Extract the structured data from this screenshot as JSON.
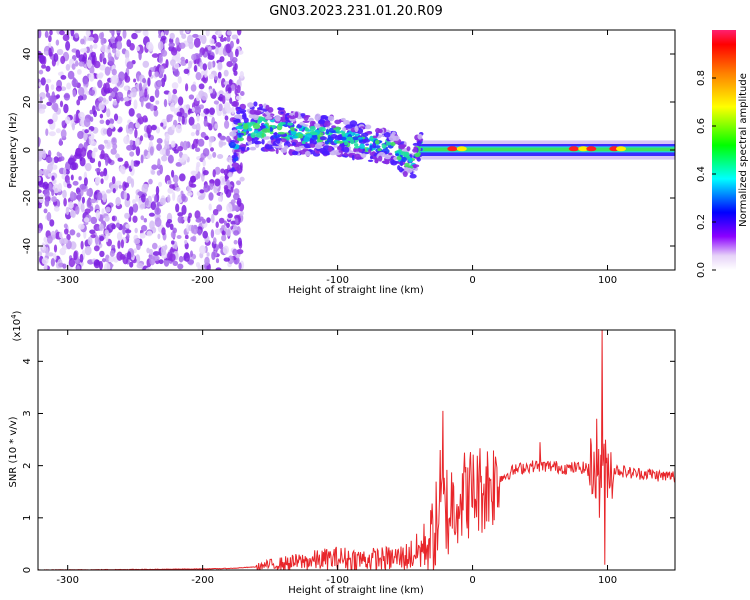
{
  "title": "GN03.2023.231.01.20.R09",
  "chart_data": [
    {
      "type": "heatmap",
      "xlabel": "Height of straight line (km)",
      "ylabel": "Frequency (Hz)",
      "xlim": [
        -322,
        150
      ],
      "ylim": [
        -50,
        50
      ],
      "xticks": [
        -300,
        -200,
        -100,
        0,
        100
      ],
      "yticks": [
        40,
        20,
        0,
        -20,
        -40
      ],
      "grid": false,
      "noise_region": [
        -322,
        -175
      ],
      "signal_track": [
        {
          "x": -175,
          "f": 8
        },
        {
          "x": -160,
          "f": 10
        },
        {
          "x": -140,
          "f": 8
        },
        {
          "x": -120,
          "f": 6
        },
        {
          "x": -100,
          "f": 6
        },
        {
          "x": -80,
          "f": 3
        },
        {
          "x": -60,
          "f": 1
        },
        {
          "x": -45,
          "f": -6
        },
        {
          "x": -38,
          "f": 3
        },
        {
          "x": -20,
          "f": 1
        },
        {
          "x": 0,
          "f": 0
        },
        {
          "x": 50,
          "f": 0
        },
        {
          "x": 85,
          "f": 1
        },
        {
          "x": 100,
          "f": -1
        },
        {
          "x": 150,
          "f": 0
        }
      ],
      "colorbar": {
        "label": "Normalized spectral amplitude",
        "ticks": [
          "0.0",
          "0.2",
          "0.4",
          "0.6",
          "0.8"
        ],
        "range": [
          0,
          1
        ]
      }
    },
    {
      "type": "line",
      "xlabel": "Height of straight line (km)",
      "ylabel": "SNR (10 * v/v)",
      "multiplier": "(x10",
      "multiplier_exp": "4",
      "multiplier_close": ")",
      "xlim": [
        -322,
        150
      ],
      "ylim": [
        0,
        4.6
      ],
      "xticks": [
        -300,
        -200,
        -100,
        0,
        100
      ],
      "yticks": [
        0,
        1,
        2,
        3,
        4
      ],
      "grid": false,
      "series": [
        {
          "color": "#e8262a",
          "points": [
            [
              -322,
              0.0
            ],
            [
              -250,
              0.01
            ],
            [
              -200,
              0.02
            ],
            [
              -180,
              0.03
            ],
            [
              -160,
              0.06
            ],
            [
              -150,
              0.1
            ],
            [
              -130,
              0.15
            ],
            [
              -110,
              0.2
            ],
            [
              -100,
              0.22
            ],
            [
              -80,
              0.2
            ],
            [
              -60,
              0.22
            ],
            [
              -50,
              0.25
            ],
            [
              -40,
              0.35
            ],
            [
              -30,
              0.6
            ],
            [
              -25,
              1.0
            ],
            [
              -20,
              1.2
            ],
            [
              -10,
              1.4
            ],
            [
              0,
              1.5
            ],
            [
              10,
              1.6
            ],
            [
              20,
              1.75
            ],
            [
              30,
              1.9
            ],
            [
              40,
              1.98
            ],
            [
              50,
              2.0
            ],
            [
              60,
              1.98
            ],
            [
              70,
              1.95
            ],
            [
              80,
              1.96
            ],
            [
              90,
              1.95
            ],
            [
              100,
              1.95
            ],
            [
              110,
              1.9
            ],
            [
              120,
              1.85
            ],
            [
              130,
              1.85
            ],
            [
              140,
              1.8
            ],
            [
              150,
              1.8
            ]
          ],
          "spikes": [
            {
              "x": -22,
              "y": 3.05
            },
            {
              "x": -24,
              "y": 2.3
            },
            {
              "x": -18,
              "y": 0.3
            },
            {
              "x": 50,
              "y": 2.45
            },
            {
              "x": 92,
              "y": 2.9
            },
            {
              "x": 96,
              "y": 4.6
            },
            {
              "x": 98,
              "y": 0.1
            },
            {
              "x": 94,
              "y": 1.0
            }
          ]
        }
      ]
    }
  ]
}
